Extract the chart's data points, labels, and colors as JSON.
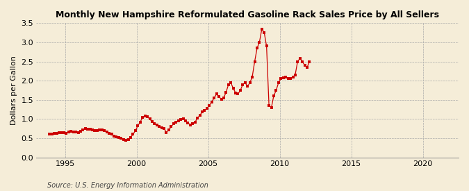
{
  "title": "Monthly New Hampshire Reformulated Gasoline Rack Sales Price by All Sellers",
  "ylabel": "Dollars per Gallon",
  "source": "Source: U.S. Energy Information Administration",
  "background_color": "#f5edd8",
  "plot_bg_color": "#f5edd8",
  "line_color": "#cc0000",
  "marker_color": "#cc0000",
  "xlim": [
    1993.0,
    2022.5
  ],
  "ylim": [
    0.0,
    3.5
  ],
  "yticks": [
    0.0,
    0.5,
    1.0,
    1.5,
    2.0,
    2.5,
    3.0,
    3.5
  ],
  "xticks": [
    1995,
    2000,
    2005,
    2010,
    2015,
    2020
  ],
  "data": [
    [
      1993.92,
      0.6
    ],
    [
      1994.08,
      0.61
    ],
    [
      1994.25,
      0.62
    ],
    [
      1994.42,
      0.62
    ],
    [
      1994.58,
      0.64
    ],
    [
      1994.75,
      0.64
    ],
    [
      1994.92,
      0.65
    ],
    [
      1995.08,
      0.63
    ],
    [
      1995.25,
      0.66
    ],
    [
      1995.42,
      0.68
    ],
    [
      1995.58,
      0.67
    ],
    [
      1995.75,
      0.66
    ],
    [
      1995.92,
      0.65
    ],
    [
      1996.08,
      0.68
    ],
    [
      1996.25,
      0.72
    ],
    [
      1996.42,
      0.75
    ],
    [
      1996.58,
      0.74
    ],
    [
      1996.75,
      0.73
    ],
    [
      1996.92,
      0.71
    ],
    [
      1997.08,
      0.69
    ],
    [
      1997.25,
      0.7
    ],
    [
      1997.42,
      0.72
    ],
    [
      1997.58,
      0.71
    ],
    [
      1997.75,
      0.7
    ],
    [
      1997.92,
      0.67
    ],
    [
      1998.08,
      0.63
    ],
    [
      1998.25,
      0.6
    ],
    [
      1998.42,
      0.56
    ],
    [
      1998.58,
      0.54
    ],
    [
      1998.75,
      0.52
    ],
    [
      1998.92,
      0.5
    ],
    [
      1999.08,
      0.46
    ],
    [
      1999.25,
      0.44
    ],
    [
      1999.42,
      0.46
    ],
    [
      1999.58,
      0.52
    ],
    [
      1999.75,
      0.6
    ],
    [
      1999.92,
      0.7
    ],
    [
      2000.08,
      0.82
    ],
    [
      2000.25,
      0.92
    ],
    [
      2000.42,
      1.05
    ],
    [
      2000.58,
      1.08
    ],
    [
      2000.75,
      1.06
    ],
    [
      2000.92,
      1.0
    ],
    [
      2001.08,
      0.93
    ],
    [
      2001.25,
      0.88
    ],
    [
      2001.42,
      0.85
    ],
    [
      2001.58,
      0.8
    ],
    [
      2001.75,
      0.78
    ],
    [
      2001.92,
      0.75
    ],
    [
      2002.08,
      0.65
    ],
    [
      2002.25,
      0.72
    ],
    [
      2002.42,
      0.8
    ],
    [
      2002.58,
      0.88
    ],
    [
      2002.75,
      0.91
    ],
    [
      2002.92,
      0.96
    ],
    [
      2003.08,
      0.98
    ],
    [
      2003.25,
      1.0
    ],
    [
      2003.42,
      0.96
    ],
    [
      2003.58,
      0.9
    ],
    [
      2003.75,
      0.85
    ],
    [
      2003.92,
      0.88
    ],
    [
      2004.08,
      0.92
    ],
    [
      2004.25,
      1.02
    ],
    [
      2004.42,
      1.1
    ],
    [
      2004.58,
      1.18
    ],
    [
      2004.75,
      1.22
    ],
    [
      2004.92,
      1.28
    ],
    [
      2005.08,
      1.35
    ],
    [
      2005.25,
      1.45
    ],
    [
      2005.42,
      1.55
    ],
    [
      2005.58,
      1.65
    ],
    [
      2005.75,
      1.58
    ],
    [
      2005.92,
      1.52
    ],
    [
      2006.08,
      1.55
    ],
    [
      2006.25,
      1.7
    ],
    [
      2006.42,
      1.9
    ],
    [
      2006.58,
      1.95
    ],
    [
      2006.75,
      1.8
    ],
    [
      2006.92,
      1.68
    ],
    [
      2007.08,
      1.65
    ],
    [
      2007.25,
      1.75
    ],
    [
      2007.42,
      1.9
    ],
    [
      2007.58,
      1.95
    ],
    [
      2007.75,
      1.85
    ],
    [
      2007.92,
      1.95
    ],
    [
      2008.08,
      2.1
    ],
    [
      2008.25,
      2.5
    ],
    [
      2008.42,
      2.85
    ],
    [
      2008.58,
      3.0
    ],
    [
      2008.75,
      3.35
    ],
    [
      2008.92,
      3.25
    ],
    [
      2009.08,
      2.9
    ],
    [
      2009.25,
      1.35
    ],
    [
      2009.42,
      1.3
    ],
    [
      2009.58,
      1.6
    ],
    [
      2009.75,
      1.75
    ],
    [
      2009.92,
      1.95
    ],
    [
      2010.08,
      2.05
    ],
    [
      2010.25,
      2.08
    ],
    [
      2010.42,
      2.1
    ],
    [
      2010.58,
      2.05
    ],
    [
      2010.75,
      2.05
    ],
    [
      2010.92,
      2.1
    ],
    [
      2011.08,
      2.15
    ],
    [
      2011.25,
      2.5
    ],
    [
      2011.42,
      2.58
    ],
    [
      2011.58,
      2.5
    ],
    [
      2011.75,
      2.4
    ],
    [
      2011.92,
      2.35
    ],
    [
      2012.08,
      2.5
    ]
  ]
}
